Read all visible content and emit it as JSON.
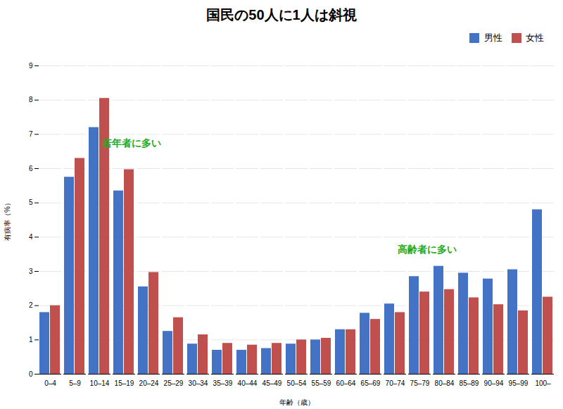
{
  "chart_data": {
    "type": "bar",
    "title": "国民の50人に1人は斜視",
    "xlabel": "年齢（歳）",
    "ylabel": "有病率（%）",
    "categories": [
      "0–4",
      "5–9",
      "10–14",
      "15–19",
      "20–24",
      "25–29",
      "30–34",
      "35–39",
      "40–44",
      "45–49",
      "50–54",
      "55–59",
      "60–64",
      "65–69",
      "70–74",
      "75–79",
      "80–84",
      "85–89",
      "90–94",
      "95–99",
      "100–"
    ],
    "series": [
      {
        "name": "男性",
        "color": "#4472C4",
        "values": [
          1.8,
          5.75,
          7.2,
          5.35,
          2.55,
          1.25,
          0.88,
          0.7,
          0.7,
          0.75,
          0.88,
          1.0,
          1.3,
          1.78,
          2.05,
          2.85,
          3.15,
          2.95,
          2.78,
          3.05,
          4.8
        ]
      },
      {
        "name": "女性",
        "color": "#C0504D",
        "values": [
          2.0,
          6.3,
          8.05,
          5.97,
          2.97,
          1.65,
          1.15,
          0.9,
          0.85,
          0.9,
          1.0,
          1.05,
          1.3,
          1.6,
          1.8,
          2.4,
          2.47,
          2.23,
          2.03,
          1.85,
          2.25
        ]
      }
    ],
    "ylim": [
      0,
      9
    ],
    "yticks": [
      0,
      1,
      2,
      3,
      4,
      5,
      6,
      7,
      8,
      9
    ],
    "grid": true,
    "legend": "upper right",
    "annotations": [
      {
        "text": "若年者に多い",
        "x": "10–14",
        "y": 6.85,
        "color": "#22AA22"
      },
      {
        "text": "高齢者に多い",
        "x": "70–74",
        "y": 3.75,
        "color": "#22AA22"
      }
    ]
  }
}
